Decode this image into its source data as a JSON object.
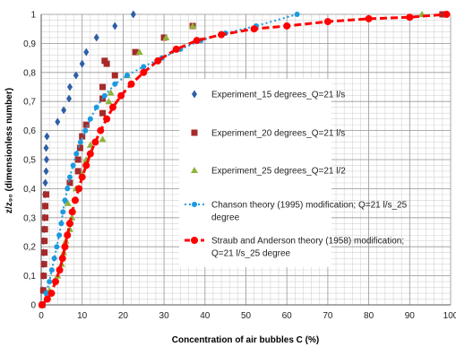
{
  "chart_data": {
    "type": "scatter",
    "xlabel": "Concentration of air bubbles C (%)",
    "ylabel": "z/z₉₀ (dimensionless number)",
    "xlim": [
      0,
      100
    ],
    "ylim": [
      0,
      1
    ],
    "x_ticks": [
      "0",
      "10",
      "20",
      "30",
      "40",
      "50",
      "60",
      "70",
      "80",
      "90",
      "100"
    ],
    "y_ticks": [
      "0",
      "0,1",
      "0,2",
      "0,3",
      "0,4",
      "0,5",
      "0,6",
      "0,7",
      "0,8",
      "0,9",
      "1"
    ],
    "grid": true,
    "legend_position": "center-right",
    "series": [
      {
        "name": "Experiment_15 degrees_Q=21 l/s",
        "marker": "diamond",
        "color": "#2e5fa7",
        "points": [
          [
            0.3,
            0.0
          ],
          [
            0.4,
            0.05
          ],
          [
            0.5,
            0.1
          ],
          [
            0.5,
            0.14
          ],
          [
            0.6,
            0.18
          ],
          [
            0.6,
            0.22
          ],
          [
            0.7,
            0.26
          ],
          [
            0.8,
            0.3
          ],
          [
            0.9,
            0.34
          ],
          [
            0.9,
            0.38
          ],
          [
            1.0,
            0.42
          ],
          [
            1.2,
            0.46
          ],
          [
            1.3,
            0.5
          ],
          [
            1.2,
            0.54
          ],
          [
            1.4,
            0.58
          ],
          [
            4.0,
            0.63
          ],
          [
            5.5,
            0.67
          ],
          [
            6.8,
            0.71
          ],
          [
            7.0,
            0.75
          ],
          [
            8.5,
            0.79
          ],
          [
            10.0,
            0.83
          ],
          [
            11.0,
            0.87
          ],
          [
            13.5,
            0.92
          ],
          [
            18.0,
            0.96
          ],
          [
            22.5,
            1.0
          ]
        ]
      },
      {
        "name": "Experiment_20 degrees_Q=21 l/s",
        "marker": "square",
        "color": "#a52a2a",
        "points": [
          [
            0.3,
            0.0
          ],
          [
            0.5,
            0.05
          ],
          [
            0.6,
            0.1
          ],
          [
            0.7,
            0.14
          ],
          [
            0.8,
            0.18
          ],
          [
            0.8,
            0.22
          ],
          [
            0.9,
            0.26
          ],
          [
            1.0,
            0.3
          ],
          [
            1.0,
            0.34
          ],
          [
            1.2,
            0.38
          ],
          [
            7.0,
            0.42
          ],
          [
            9.0,
            0.46
          ],
          [
            9.0,
            0.5
          ],
          [
            9.5,
            0.54
          ],
          [
            10.0,
            0.58
          ],
          [
            11.0,
            0.62
          ],
          [
            15.0,
            0.66
          ],
          [
            15.0,
            0.71
          ],
          [
            15.0,
            0.75
          ],
          [
            18.0,
            0.79
          ],
          [
            16.0,
            0.83
          ],
          [
            15.5,
            0.84
          ],
          [
            23.0,
            0.87
          ],
          [
            30.0,
            0.92
          ],
          [
            37.0,
            0.96
          ],
          [
            98.0,
            1.0
          ]
        ]
      },
      {
        "name": "Experiment_25 degrees_Q=21 l/2",
        "marker": "triangle",
        "color": "#8fb339",
        "points": [
          [
            0.2,
            0.0
          ],
          [
            2.0,
            0.05
          ],
          [
            4.0,
            0.1
          ],
          [
            5.0,
            0.14
          ],
          [
            5.5,
            0.18
          ],
          [
            6.0,
            0.22
          ],
          [
            7.0,
            0.26
          ],
          [
            7.5,
            0.3
          ],
          [
            6.5,
            0.35
          ],
          [
            8.5,
            0.4
          ],
          [
            10.0,
            0.45
          ],
          [
            11.0,
            0.5
          ],
          [
            12.0,
            0.55
          ],
          [
            15.0,
            0.57
          ],
          [
            16.5,
            0.7
          ],
          [
            17.0,
            0.73
          ],
          [
            21.0,
            0.79
          ],
          [
            24.0,
            0.87
          ],
          [
            30.5,
            0.92
          ],
          [
            37.0,
            0.96
          ],
          [
            93.0,
            1.0
          ]
        ]
      },
      {
        "name": "Chanson theory (1995) modification; Q=21 l/s_25 degree",
        "marker": "circle",
        "line": "dotted",
        "color": "#1a9ae0",
        "points": [
          [
            0.5,
            0.0
          ],
          [
            1.2,
            0.04
          ],
          [
            2.0,
            0.08
          ],
          [
            2.6,
            0.12
          ],
          [
            3.2,
            0.16
          ],
          [
            3.8,
            0.2
          ],
          [
            4.4,
            0.24
          ],
          [
            4.9,
            0.28
          ],
          [
            5.3,
            0.32
          ],
          [
            5.8,
            0.36
          ],
          [
            6.4,
            0.4
          ],
          [
            7.0,
            0.44
          ],
          [
            7.8,
            0.48
          ],
          [
            8.6,
            0.52
          ],
          [
            9.6,
            0.56
          ],
          [
            10.8,
            0.6
          ],
          [
            12.0,
            0.64
          ],
          [
            13.5,
            0.68
          ],
          [
            15.5,
            0.72
          ],
          [
            18.0,
            0.76
          ],
          [
            21.0,
            0.79
          ],
          [
            25.0,
            0.82
          ],
          [
            29.5,
            0.85
          ],
          [
            34.0,
            0.88
          ],
          [
            39.0,
            0.91
          ],
          [
            45.0,
            0.935
          ],
          [
            52.5,
            0.96
          ],
          [
            62.5,
            1.0
          ]
        ]
      },
      {
        "name": "Straub and Anderson theory (1958) modification; Q=21 l/s_25 degree",
        "marker": "circle",
        "line": "dashed",
        "color": "#ff0000",
        "points": [
          [
            0.2,
            0.0
          ],
          [
            1.5,
            0.02
          ],
          [
            2.5,
            0.04
          ],
          [
            3.5,
            0.08
          ],
          [
            4.5,
            0.12
          ],
          [
            5.2,
            0.16
          ],
          [
            5.8,
            0.2
          ],
          [
            6.4,
            0.24
          ],
          [
            7.0,
            0.28
          ],
          [
            7.6,
            0.32
          ],
          [
            8.3,
            0.36
          ],
          [
            9.2,
            0.4
          ],
          [
            10.0,
            0.44
          ],
          [
            11.0,
            0.48
          ],
          [
            12.0,
            0.52
          ],
          [
            13.2,
            0.56
          ],
          [
            14.5,
            0.6
          ],
          [
            16.0,
            0.64
          ],
          [
            17.5,
            0.68
          ],
          [
            19.5,
            0.72
          ],
          [
            22.0,
            0.76
          ],
          [
            25.0,
            0.8
          ],
          [
            28.5,
            0.84
          ],
          [
            33.0,
            0.88
          ],
          [
            38.0,
            0.91
          ],
          [
            44.0,
            0.93
          ],
          [
            52.0,
            0.95
          ],
          [
            60.0,
            0.96
          ],
          [
            70.0,
            0.975
          ],
          [
            80.0,
            0.985
          ],
          [
            90.0,
            0.99
          ],
          [
            99.0,
            1.0
          ]
        ]
      }
    ],
    "legend": [
      {
        "label_lines": [
          "Experiment_15 degrees_Q=21 l/s"
        ]
      },
      {
        "label_lines": [
          "Experiment_20 degrees_Q=21 l/s"
        ]
      },
      {
        "label_lines": [
          "Experiment_25 degrees_Q=21 l/2"
        ]
      },
      {
        "label_lines": [
          "Chanson theory (1995) modification; Q=21 l/s_25",
          "degree"
        ]
      },
      {
        "label_lines": [
          "Straub and Anderson theory (1958) modification;",
          "Q=21 l/s_25 degree"
        ]
      }
    ]
  }
}
